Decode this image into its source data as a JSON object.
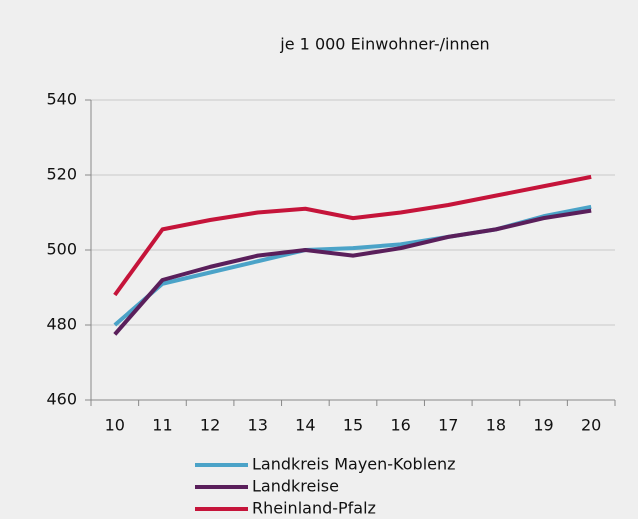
{
  "chart_data": {
    "type": "line",
    "title": "je 1 000 Einwohner-/innen",
    "categories": [
      "10",
      "11",
      "12",
      "13",
      "14",
      "15",
      "16",
      "17",
      "18",
      "19",
      "20"
    ],
    "series": [
      {
        "name": "Landkreis Mayen-Koblenz",
        "color": "#4ba3c8",
        "values": [
          480,
          491,
          494,
          497,
          500,
          500.5,
          501.5,
          503.5,
          505.5,
          509,
          511.5
        ]
      },
      {
        "name": "Landkreise",
        "color": "#5a1f5b",
        "values": [
          477.5,
          492,
          495.5,
          498.5,
          500,
          498.5,
          500.5,
          503.5,
          505.5,
          508.5,
          510.5
        ]
      },
      {
        "name": "Rheinland-Pfalz",
        "color": "#c5143a",
        "values": [
          488,
          505.5,
          508,
          510,
          511,
          508.5,
          510,
          512,
          514.5,
          517,
          519.5
        ]
      }
    ],
    "ylim": [
      460,
      540
    ],
    "yticks": [
      460,
      480,
      500,
      520,
      540
    ],
    "grid": true,
    "legend": "bottom"
  }
}
